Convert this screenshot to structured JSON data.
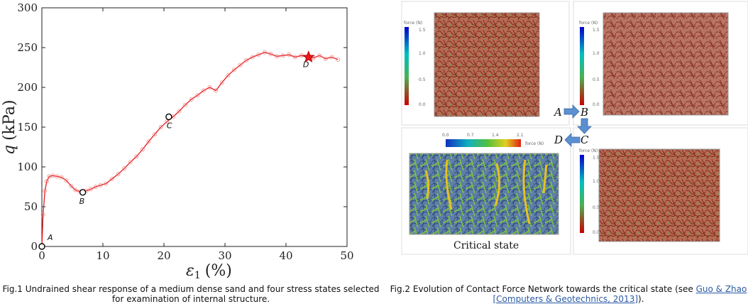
{
  "chart_data": {
    "type": "line",
    "xlabel_symbol": "ε",
    "xlabel_sub": "1",
    "xlabel_unit": "(%)",
    "ylabel_symbol": "q",
    "ylabel_unit": "(kPa)",
    "xlim": [
      0,
      50
    ],
    "ylim": [
      0,
      300
    ],
    "x_ticks": [
      0,
      10,
      20,
      30,
      40,
      50
    ],
    "y_ticks": [
      0,
      50,
      100,
      150,
      200,
      250,
      300
    ],
    "series": [
      {
        "color": "#e41a1c",
        "x": [
          0,
          0.2,
          0.5,
          0.8,
          1.2,
          1.8,
          2.5,
          3.2,
          4,
          4.8,
          5.5,
          6.2,
          6.7,
          7.3,
          8,
          8.8,
          9.6,
          10.5,
          11.5,
          12.5,
          13.5,
          14.5,
          15.5,
          16.5,
          17.5,
          18.5,
          19.5,
          20.5,
          21.5,
          22.5,
          23.5,
          24.5,
          25.5,
          26.5,
          27.5,
          28.5,
          29.5,
          30.5,
          31.5,
          32.5,
          33.5,
          34.5,
          35.5,
          36.5,
          37.5,
          38.5,
          39.5,
          40.5,
          41.5,
          42.5,
          43.5,
          44.5,
          45.5,
          46.5,
          47.5,
          48.5
        ],
        "y": [
          0,
          40,
          70,
          82,
          88,
          89,
          88,
          87,
          83,
          76,
          71,
          69,
          68,
          70,
          72,
          75,
          77,
          79,
          85,
          91,
          98,
          106,
          113,
          122,
          132,
          141,
          150,
          157,
          163,
          170,
          178,
          185,
          190,
          196,
          200,
          196,
          206,
          215,
          222,
          228,
          234,
          238,
          241,
          244,
          242,
          239,
          240,
          241,
          238,
          240,
          238,
          237,
          240,
          236,
          238,
          235
        ]
      }
    ],
    "markers": [
      {
        "label": "A",
        "x": 0,
        "y": 0,
        "shape": "circle"
      },
      {
        "label": "B",
        "x": 6.7,
        "y": 68,
        "shape": "circle"
      },
      {
        "label": "C",
        "x": 20.8,
        "y": 163,
        "shape": "circle"
      },
      {
        "label": "D",
        "x": 43.7,
        "y": 238,
        "shape": "star"
      }
    ]
  },
  "figure2": {
    "colorbar_label": "force (N)",
    "colorbar_ticks": [
      "1.5",
      "1.0",
      "0.5",
      "0.0"
    ],
    "colorbar_ticks_horizontal": [
      "0.0",
      "0.7",
      "1.4",
      "2.1"
    ],
    "sequence_labels": [
      "A",
      "B",
      "C",
      "D"
    ],
    "critical_state_label": "Critical state",
    "colors": {
      "arrow": "#5b8fcf",
      "network_brown": "#8c3b2a",
      "network_green": "#6db33f",
      "network_blue": "#3d5a8a"
    }
  },
  "captions": {
    "fig1": "Fig.1 Undrained shear response of a medium dense sand and four stress states selected for examination of internal structure.",
    "fig2_prefix": "Fig.2 Evolution of Contact Force Network towards the critical state (see ",
    "fig2_link": "Guo & Zhao [Computers & Geotechnics, 2013]",
    "fig2_suffix": ")."
  }
}
